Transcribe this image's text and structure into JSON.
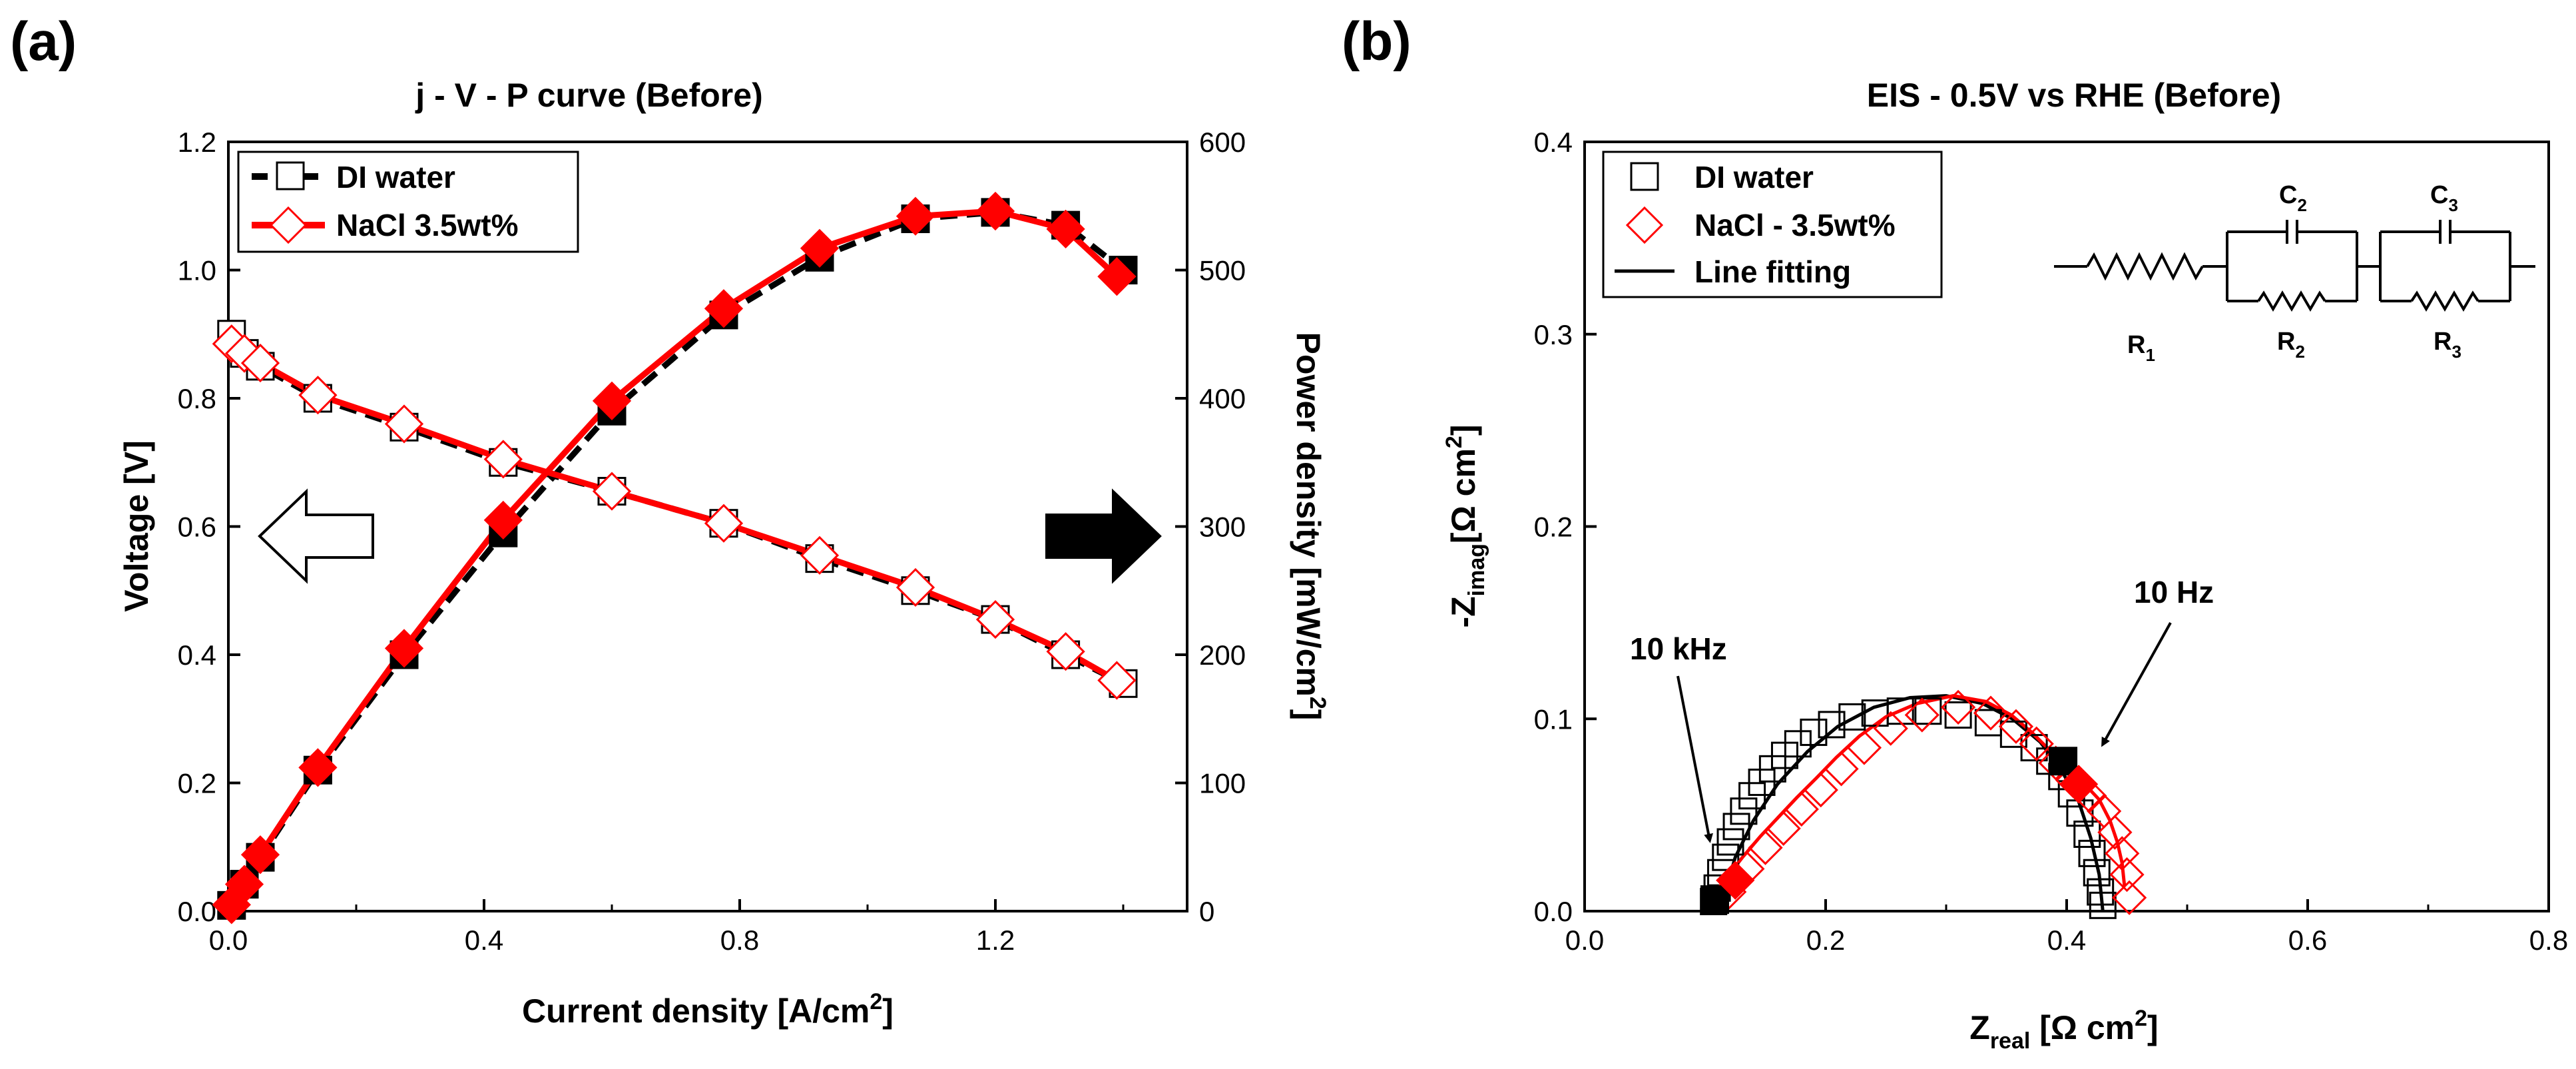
{
  "chart_data": [
    {
      "panel_label": "(a)",
      "type": "scatter",
      "title": "j - V - P curve (Before)",
      "xlabel": "Current density [A/cm²]",
      "xlabel_main": "Current density [A/cm",
      "xlabel_sup": "2",
      "xlabel_end": "]",
      "ylabel": "Voltage [V]",
      "y2label_main": "Power density [mW/cm",
      "y2label_sup": "2",
      "y2label_end": "]",
      "xlim": [
        0,
        1.5
      ],
      "ylim": [
        0,
        1.2
      ],
      "y2lim": [
        0,
        600
      ],
      "xticks": [
        "0.0",
        "0.4",
        "0.8",
        "1.2"
      ],
      "yticks": [
        "0.0",
        "0.2",
        "0.4",
        "0.6",
        "0.8",
        "1.0",
        "1.2"
      ],
      "y2ticks": [
        "0",
        "100",
        "200",
        "300",
        "400",
        "500",
        "600"
      ],
      "legend": {
        "position": "top-left",
        "entries": [
          "DI water",
          "NaCl 3.5wt%"
        ]
      },
      "arrows": {
        "left": "open-arrow pointing left (voltage axis)",
        "right": "filled arrow pointing right (power axis)"
      },
      "series": [
        {
          "name": "DI water",
          "color": "#000000",
          "current": [
            0.005,
            0.025,
            0.05,
            0.14,
            0.275,
            0.43,
            0.6,
            0.775,
            0.925,
            1.075,
            1.2,
            1.31,
            1.4
          ],
          "voltage": [
            0.9,
            0.87,
            0.85,
            0.8,
            0.755,
            0.7,
            0.655,
            0.605,
            0.55,
            0.5,
            0.455,
            0.4,
            0.355
          ],
          "power": [
            4.5,
            21,
            42,
            110,
            200,
            295,
            390,
            465,
            510,
            540,
            545,
            535,
            500
          ]
        },
        {
          "name": "NaCl 3.5wt%",
          "color": "#ff0000",
          "current": [
            0.005,
            0.025,
            0.05,
            0.14,
            0.275,
            0.43,
            0.6,
            0.775,
            0.925,
            1.075,
            1.2,
            1.31,
            1.39
          ],
          "voltage": [
            0.885,
            0.87,
            0.855,
            0.805,
            0.76,
            0.705,
            0.655,
            0.605,
            0.555,
            0.505,
            0.455,
            0.405,
            0.36
          ],
          "power": [
            5,
            21,
            44,
            112,
            205,
            305,
            398,
            470,
            517,
            542,
            546,
            532,
            495
          ]
        }
      ]
    },
    {
      "panel_label": "(b)",
      "type": "scatter",
      "title": "EIS - 0.5V vs RHE (Before)",
      "xlabel": "Zreal [Ω cm²]",
      "ylabel": "-Zimag[Ω cm²]",
      "xlim": [
        0,
        0.8
      ],
      "ylim": [
        0,
        0.4
      ],
      "xticks": [
        "0.0",
        "0.2",
        "0.4",
        "0.6",
        "0.8"
      ],
      "yticks": [
        "0.0",
        "0.1",
        "0.2",
        "0.3",
        "0.4"
      ],
      "legend": {
        "position": "top-left",
        "entries": [
          "DI water",
          "NaCl - 3.5wt%",
          "Line fitting"
        ]
      },
      "annotations": [
        "10 kHz",
        "10 Hz"
      ],
      "circuit_labels": [
        "R1",
        "C2",
        "R2",
        "C3",
        "R3"
      ],
      "series": [
        {
          "name": "DI water",
          "color": "#000000",
          "zreal": [
            0.107,
            0.11,
            0.113,
            0.117,
            0.121,
            0.126,
            0.132,
            0.139,
            0.147,
            0.156,
            0.166,
            0.177,
            0.19,
            0.205,
            0.222,
            0.241,
            0.262,
            0.285,
            0.31,
            0.335,
            0.356,
            0.373,
            0.386,
            0.396,
            0.404,
            0.411,
            0.417,
            0.421,
            0.425,
            0.428,
            0.43
          ],
          "zimag": [
            0.005,
            0.012,
            0.02,
            0.028,
            0.036,
            0.044,
            0.052,
            0.06,
            0.067,
            0.074,
            0.081,
            0.087,
            0.093,
            0.097,
            0.101,
            0.103,
            0.104,
            0.104,
            0.102,
            0.098,
            0.092,
            0.085,
            0.078,
            0.07,
            0.061,
            0.051,
            0.04,
            0.03,
            0.02,
            0.01,
            0.003
          ]
        },
        {
          "name": "NaCl - 3.5wt%",
          "color": "#ff0000",
          "zreal": [
            0.12,
            0.135,
            0.15,
            0.165,
            0.18,
            0.196,
            0.213,
            0.232,
            0.254,
            0.28,
            0.31,
            0.337,
            0.358,
            0.375,
            0.391,
            0.405,
            0.419,
            0.431,
            0.44,
            0.446,
            0.45,
            0.452
          ],
          "zimag": [
            0.01,
            0.022,
            0.033,
            0.043,
            0.053,
            0.063,
            0.074,
            0.085,
            0.095,
            0.102,
            0.106,
            0.103,
            0.096,
            0.087,
            0.077,
            0.068,
            0.06,
            0.052,
            0.041,
            0.03,
            0.019,
            0.007
          ]
        },
        {
          "name": "Line fitting",
          "color": "#000000",
          "zreal": [
            0.112,
            0.125,
            0.14,
            0.16,
            0.185,
            0.21,
            0.24,
            0.27,
            0.3,
            0.33,
            0.355,
            0.378,
            0.395,
            0.41,
            0.42,
            0.427,
            0.43
          ],
          "zimag": [
            0.0,
            0.028,
            0.047,
            0.066,
            0.083,
            0.096,
            0.106,
            0.111,
            0.112,
            0.108,
            0.1,
            0.088,
            0.074,
            0.057,
            0.038,
            0.019,
            0.0
          ]
        }
      ],
      "highlight_points": {
        "DI water": [
          [
            0.108,
            0.006
          ],
          [
            0.397,
            0.078
          ]
        ],
        "NaCl - 3.5wt%": [
          [
            0.125,
            0.016
          ],
          [
            0.41,
            0.066
          ]
        ]
      }
    }
  ]
}
